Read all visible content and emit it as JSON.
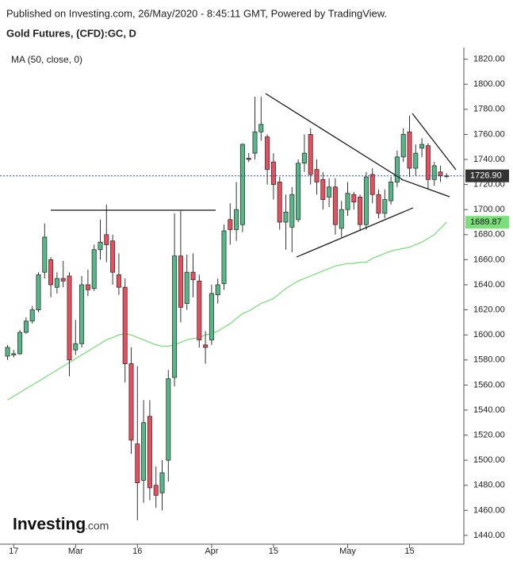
{
  "chart_data": {
    "type": "candlestick",
    "published": "Published on Investing.com, 26/May/2020 - 8:45:11 GMT, Powered by TradingView.",
    "title": "Gold Futures, (CFD):GC, D",
    "logo": "Investing",
    "logo_suffix": ".com",
    "categories": [
      null,
      "17",
      null,
      null,
      null,
      null,
      null,
      null,
      null,
      null,
      null,
      "Mar",
      null,
      null,
      null,
      null,
      null,
      null,
      null,
      null,
      null,
      "16",
      null,
      null,
      null,
      null,
      null,
      null,
      null,
      null,
      null,
      null,
      null,
      "Apr",
      null,
      null,
      null,
      null,
      null,
      null,
      null,
      null,
      null,
      "15",
      null,
      null,
      null,
      null,
      null,
      null,
      null,
      null,
      null,
      null,
      null,
      "May",
      null,
      null,
      null,
      null,
      null,
      null,
      null,
      null,
      null,
      "15",
      null,
      null,
      null,
      null,
      null,
      null
    ],
    "open": [
      1583,
      1584,
      1585,
      1602,
      1611,
      1620,
      1650,
      1660,
      1638,
      1645,
      1647,
      1588,
      1593,
      1640,
      1637,
      1668,
      1680,
      1675,
      1648,
      1638,
      1577,
      1513,
      1484,
      1535,
      1480,
      1474,
      1500,
      1566,
      1663,
      1625,
      1650,
      1643,
      1592,
      1596,
      1632,
      1641,
      1692,
      1684,
      1688,
      1741,
      1745,
      1762,
      1758,
      1738,
      1722,
      1690,
      1686,
      1692,
      1737,
      1760,
      1732,
      1724,
      1710,
      1718,
      1685,
      1700,
      1712,
      1710,
      1688,
      1728,
      1712,
      1697,
      1707,
      1722,
      1742,
      1762,
      1733,
      1749,
      1751,
      1724,
      1730,
      1727
    ],
    "high": [
      1592,
      1588,
      1604,
      1614,
      1623,
      1650,
      1689,
      1662,
      1650,
      1659,
      1650,
      1612,
      1647,
      1652,
      1672,
      1692,
      1704,
      1680,
      1665,
      1645,
      1590,
      1575,
      1548,
      1548,
      1495,
      1500,
      1572,
      1697,
      1699,
      1664,
      1665,
      1648,
      1603,
      1640,
      1645,
      1688,
      1705,
      1722,
      1753,
      1745,
      1790,
      1790,
      1760,
      1745,
      1726,
      1712,
      1718,
      1740,
      1760,
      1765,
      1740,
      1730,
      1725,
      1725,
      1707,
      1722,
      1714,
      1712,
      1730,
      1733,
      1716,
      1716,
      1726,
      1747,
      1765,
      1775,
      1752,
      1757,
      1753,
      1738,
      1735,
      1729
    ],
    "low": [
      1580,
      1582,
      1584,
      1601,
      1609,
      1618,
      1645,
      1630,
      1633,
      1638,
      1567,
      1584,
      1590,
      1631,
      1635,
      1660,
      1658,
      1640,
      1632,
      1562,
      1505,
      1452,
      1466,
      1468,
      1462,
      1460,
      1483,
      1559,
      1610,
      1620,
      1630,
      1590,
      1577,
      1592,
      1625,
      1636,
      1672,
      1675,
      1682,
      1738,
      1740,
      1755,
      1720,
      1708,
      1684,
      1668,
      1666,
      1690,
      1730,
      1720,
      1712,
      1700,
      1702,
      1680,
      1678,
      1695,
      1700,
      1683,
      1684,
      1705,
      1693,
      1693,
      1704,
      1718,
      1738,
      1726,
      1727,
      1742,
      1716,
      1719,
      1722,
      1725
    ],
    "close": [
      1590,
      1585,
      1602,
      1611,
      1620,
      1648,
      1678,
      1640,
      1645,
      1643,
      1580,
      1593,
      1640,
      1636,
      1668,
      1674,
      1672,
      1650,
      1638,
      1577,
      1516,
      1482,
      1530,
      1478,
      1472,
      1490,
      1565,
      1663,
      1622,
      1650,
      1644,
      1596,
      1590,
      1633,
      1640,
      1683,
      1684,
      1700,
      1752,
      1740,
      1762,
      1768,
      1732,
      1720,
      1690,
      1698,
      1712,
      1737,
      1745,
      1728,
      1722,
      1708,
      1718,
      1688,
      1700,
      1713,
      1706,
      1688,
      1726,
      1712,
      1697,
      1708,
      1722,
      1742,
      1760,
      1733,
      1745,
      1752,
      1724,
      1735,
      1727,
      1727
    ],
    "up_color": "#53b987",
    "down_color": "#eb4d5c",
    "ma": {
      "name": "MA (50, close, 0)",
      "color": "#7be07b",
      "values": [
        1548,
        1551,
        1554,
        1557,
        1560,
        1563,
        1566,
        1569,
        1572,
        1575,
        1578,
        1581,
        1584,
        1587,
        1590,
        1593,
        1596,
        1598,
        1600,
        1601,
        1600,
        1598,
        1596,
        1594,
        1592,
        1591,
        1591,
        1592,
        1594,
        1596,
        1597,
        1598,
        1600,
        1601,
        1603,
        1606,
        1609,
        1613,
        1617,
        1619,
        1622,
        1625,
        1627,
        1629,
        1633,
        1637,
        1640,
        1643,
        1645,
        1647,
        1649,
        1651,
        1653,
        1655,
        1656,
        1657,
        1657,
        1658,
        1658,
        1661,
        1663,
        1665,
        1667,
        1668,
        1669,
        1670,
        1672,
        1674,
        1677,
        1680,
        1685,
        1690
      ],
      "last": {
        "value": 1689.87,
        "label": "1689.87"
      }
    },
    "last_price": {
      "value": 1726.9,
      "label": "1726.90"
    },
    "ylim": [
      1433,
      1828
    ],
    "yticks": [
      {
        "value": 1440,
        "label": "1440.00"
      },
      {
        "value": 1460,
        "label": "1460.00"
      },
      {
        "value": 1480,
        "label": "1480.00"
      },
      {
        "value": 1500,
        "label": "1500.00"
      },
      {
        "value": 1520,
        "label": "1520.00"
      },
      {
        "value": 1540,
        "label": "1540.00"
      },
      {
        "value": 1560,
        "label": "1560.00"
      },
      {
        "value": 1580,
        "label": "1580.00"
      },
      {
        "value": 1600,
        "label": "1600.00"
      },
      {
        "value": 1620,
        "label": "1620.00"
      },
      {
        "value": 1640,
        "label": "1640.00"
      },
      {
        "value": 1660,
        "label": "1660.00"
      },
      {
        "value": 1680,
        "label": "1680.00"
      },
      {
        "value": 1700,
        "label": "1700.00"
      },
      {
        "value": 1720,
        "label": "1720.00"
      },
      {
        "value": 1740,
        "label": "1740.00"
      },
      {
        "value": 1760,
        "label": "1760.00"
      },
      {
        "value": 1780,
        "label": "1780.00"
      },
      {
        "value": 1800,
        "label": "1800.00"
      },
      {
        "value": 1820,
        "label": "1820.00"
      }
    ]
  }
}
